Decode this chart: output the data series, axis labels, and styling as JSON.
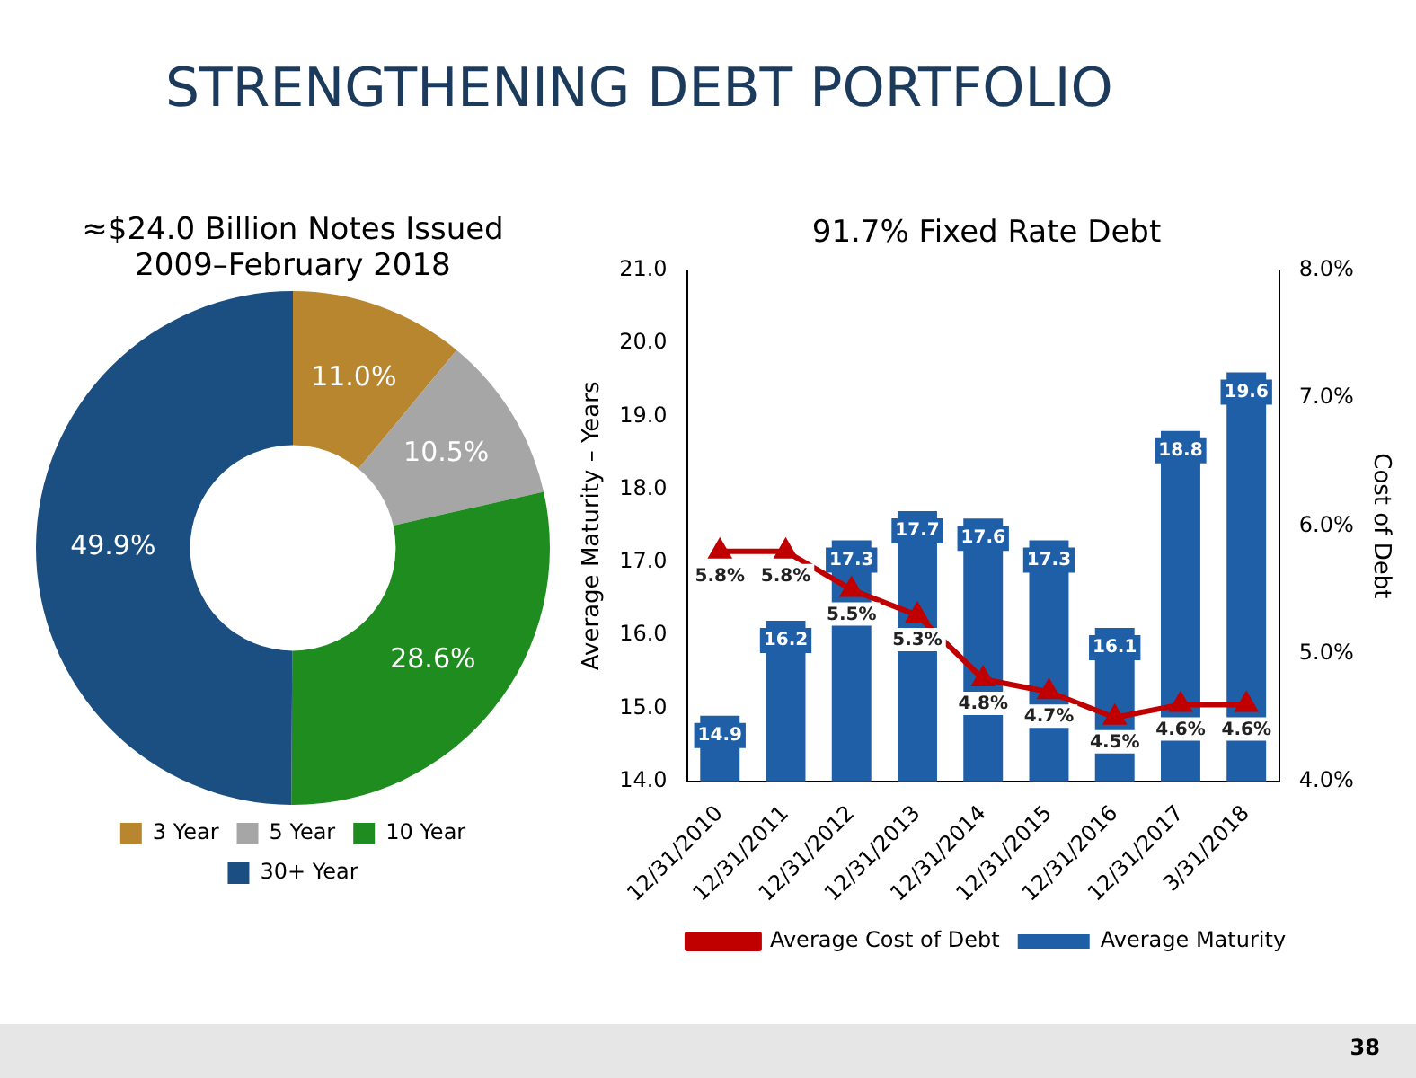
{
  "chart_data": [
    {
      "type": "other",
      "title": "STRENGTHENING DEBT PORTFOLIO",
      "annotations": [
        "38"
      ]
    },
    {
      "type": "donut",
      "title": "≈$24.0 Billion Notes Issued 2009–February 2018",
      "categories": [
        "3 Year",
        "5 Year",
        "10 Year",
        "30+ Year"
      ],
      "values": [
        11.0,
        10.5,
        28.6,
        49.9
      ],
      "colors": [
        "#b8862e",
        "#a6a6a6",
        "#1e8c1e",
        "#1b4f82"
      ],
      "value_labels": [
        "11.0%",
        "10.5%",
        "28.6%",
        "49.9%"
      ],
      "legend": "bottom"
    },
    {
      "type": "bar",
      "title": "91.7% Fixed Rate Debt",
      "ylabel": "Average Maturity – Years",
      "y2label": "Cost of Debt",
      "categories": [
        "12/31/2010",
        "12/31/2011",
        "12/31/2012",
        "12/31/2013",
        "12/31/2014",
        "12/31/2015",
        "12/31/2016",
        "12/31/2017",
        "3/31/2018"
      ],
      "series": [
        {
          "name": "Average Maturity",
          "type": "bar",
          "color": "#1f5fa8",
          "values": [
            14.9,
            16.2,
            17.3,
            17.7,
            17.6,
            17.3,
            16.1,
            18.8,
            19.6
          ],
          "value_labels": [
            "14.9",
            "16.2",
            "17.3",
            "17.7",
            "17.6",
            "17.3",
            "16.1",
            "18.8",
            "19.6"
          ]
        },
        {
          "name": "Average Cost of Debt",
          "type": "line",
          "axis": "y2",
          "marker": "triangle",
          "color": "#c00000",
          "values": [
            5.8,
            5.8,
            5.5,
            5.3,
            4.8,
            4.7,
            4.5,
            4.6,
            4.6
          ],
          "value_labels": [
            "5.8%",
            "5.8%",
            "5.5%",
            "5.3%",
            "4.8%",
            "4.7%",
            "4.5%",
            "4.6%",
            "4.6%"
          ]
        }
      ],
      "ylim": [
        14,
        21
      ],
      "yticks": [
        {
          "value": 14,
          "label": "14.0"
        },
        {
          "value": 15,
          "label": "15.0"
        },
        {
          "value": 16,
          "label": "16.0"
        },
        {
          "value": 17,
          "label": "17.0"
        },
        {
          "value": 18,
          "label": "18.0"
        },
        {
          "value": 19,
          "label": "19.0"
        },
        {
          "value": 20,
          "label": "20.0"
        },
        {
          "value": 21,
          "label": "21.0"
        }
      ],
      "y2lim": [
        4,
        8
      ],
      "y2ticks": [
        {
          "value": 4,
          "label": "4.0%"
        },
        {
          "value": 5,
          "label": "5.0%"
        },
        {
          "value": 6,
          "label": "6.0%"
        },
        {
          "value": 7,
          "label": "7.0%"
        },
        {
          "value": 8,
          "label": "8.0%"
        }
      ],
      "legend": "bottom",
      "grid": false
    }
  ]
}
